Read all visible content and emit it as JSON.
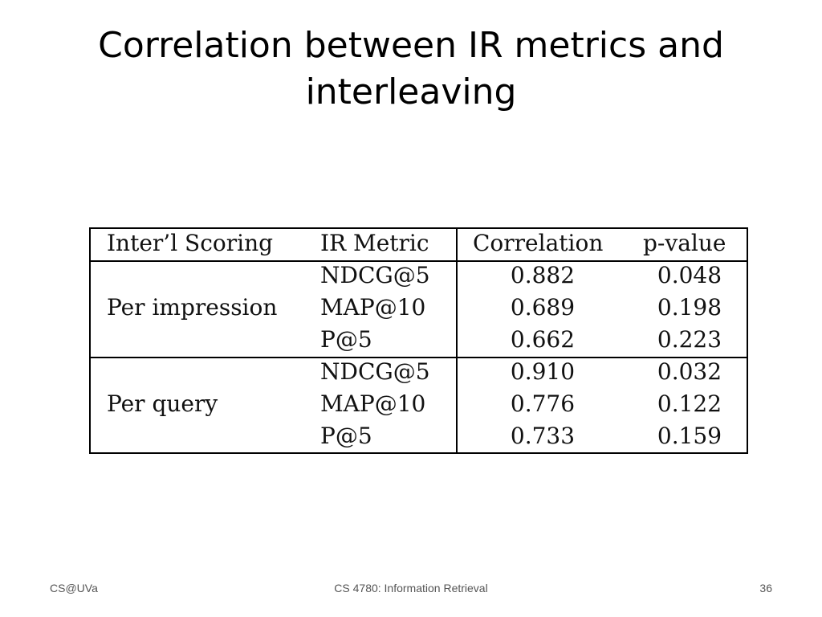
{
  "slide": {
    "title_line1": "Correlation between IR metrics and",
    "title_line2": "interleaving"
  },
  "table": {
    "headers": {
      "scoring": "Inter’l Scoring",
      "metric": "IR Metric",
      "correlation": "Correlation",
      "pvalue": "p-value"
    },
    "groups": [
      {
        "scoring": "Per impression",
        "rows": [
          {
            "metric": "NDCG@5",
            "correlation": "0.882",
            "pvalue": "0.048"
          },
          {
            "metric": "MAP@10",
            "correlation": "0.689",
            "pvalue": "0.198"
          },
          {
            "metric": "P@5",
            "correlation": "0.662",
            "pvalue": "0.223"
          }
        ]
      },
      {
        "scoring": "Per query",
        "rows": [
          {
            "metric": "NDCG@5",
            "correlation": "0.910",
            "pvalue": "0.032"
          },
          {
            "metric": "MAP@10",
            "correlation": "0.776",
            "pvalue": "0.122"
          },
          {
            "metric": "P@5",
            "correlation": "0.733",
            "pvalue": "0.159"
          }
        ]
      }
    ]
  },
  "footer": {
    "left": "CS@UVa",
    "center": "CS 4780: Information Retrieval",
    "page_number": "36"
  }
}
